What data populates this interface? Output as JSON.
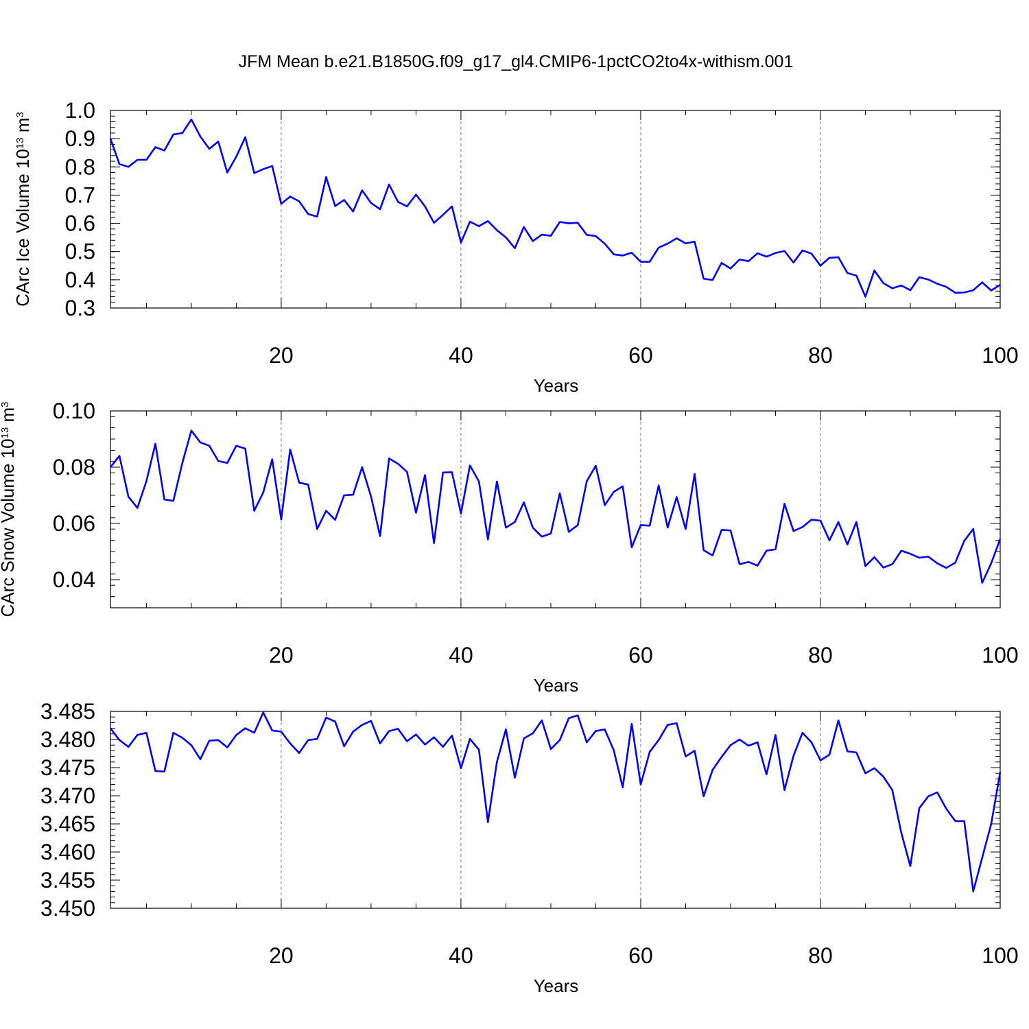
{
  "title": "JFM Mean b.e21.B1850G.f09_g17_gl4.CMIP6-1pctCO2to4x-withism.001",
  "colors": {
    "series": "#0000ff",
    "grid": "#777777",
    "axes": "#000000"
  },
  "chart_data": [
    {
      "type": "line",
      "xlabel": "Years",
      "ylabel": "CArc Ice Volume 10",
      "ylabel_exp": "13",
      "ylabel_unit": " m",
      "ylabel_unit_exp": "3",
      "xlim": [
        1,
        100
      ],
      "ylim": [
        0.3,
        1.0
      ],
      "xticks": [
        "20",
        "40",
        "60",
        "80",
        "100"
      ],
      "yticks": [
        "0.3",
        "0.4",
        "0.5",
        "0.6",
        "0.7",
        "0.8",
        "0.9",
        "1.0"
      ],
      "grid": "x-dashed",
      "series": [
        {
          "color": "#0000ff",
          "values": [
            0.9,
            0.81,
            0.8,
            0.825,
            0.825,
            0.87,
            0.858,
            0.915,
            0.92,
            0.968,
            0.908,
            0.864,
            0.89,
            0.78,
            0.836,
            0.905,
            0.778,
            0.792,
            0.803,
            0.669,
            0.695,
            0.678,
            0.633,
            0.624,
            0.764,
            0.661,
            0.683,
            0.642,
            0.717,
            0.672,
            0.65,
            0.738,
            0.676,
            0.66,
            0.702,
            0.66,
            0.602,
            0.63,
            0.66,
            0.532,
            0.606,
            0.59,
            0.608,
            0.576,
            0.55,
            0.512,
            0.587,
            0.537,
            0.56,
            0.556,
            0.605,
            0.6,
            0.602,
            0.559,
            0.555,
            0.528,
            0.49,
            0.486,
            0.496,
            0.464,
            0.464,
            0.514,
            0.528,
            0.547,
            0.529,
            0.535,
            0.404,
            0.399,
            0.46,
            0.44,
            0.472,
            0.466,
            0.494,
            0.482,
            0.495,
            0.502,
            0.461,
            0.504,
            0.493,
            0.45,
            0.478,
            0.48,
            0.424,
            0.415,
            0.34,
            0.433,
            0.388,
            0.37,
            0.38,
            0.363,
            0.409,
            0.401,
            0.386,
            0.375,
            0.354,
            0.355,
            0.363,
            0.391,
            0.362,
            0.382
          ]
        }
      ]
    },
    {
      "type": "line",
      "xlabel": "Years",
      "ylabel": "CArc Snow Volume 10",
      "ylabel_exp": "13",
      "ylabel_unit": " m",
      "ylabel_unit_exp": "3",
      "xlim": [
        1,
        100
      ],
      "ylim": [
        0.03,
        0.1
      ],
      "xticks": [
        "20",
        "40",
        "60",
        "80",
        "100"
      ],
      "yticks": [
        "0.04",
        "0.06",
        "0.08",
        "0.10"
      ],
      "grid": "x-dashed",
      "series": [
        {
          "color": "#0000ff",
          "values": [
            0.08,
            0.084,
            0.0695,
            0.0655,
            0.075,
            0.0883,
            0.0685,
            0.068,
            0.0815,
            0.093,
            0.0888,
            0.0876,
            0.0822,
            0.0815,
            0.0876,
            0.0866,
            0.0645,
            0.071,
            0.0828,
            0.0614,
            0.0863,
            0.0745,
            0.0738,
            0.058,
            0.0645,
            0.0613,
            0.07,
            0.0702,
            0.08,
            0.0695,
            0.0555,
            0.0831,
            0.0812,
            0.0783,
            0.0638,
            0.0772,
            0.053,
            0.0781,
            0.0782,
            0.0635,
            0.0806,
            0.0749,
            0.0543,
            0.0749,
            0.0585,
            0.0605,
            0.0675,
            0.0585,
            0.0553,
            0.0564,
            0.0707,
            0.057,
            0.0594,
            0.075,
            0.0805,
            0.0665,
            0.0712,
            0.0732,
            0.0515,
            0.0594,
            0.0592,
            0.0735,
            0.0585,
            0.0694,
            0.058,
            0.0776,
            0.0505,
            0.0486,
            0.0577,
            0.0575,
            0.0455,
            0.0463,
            0.045,
            0.0503,
            0.0508,
            0.067,
            0.0573,
            0.0587,
            0.0613,
            0.061,
            0.054,
            0.0605,
            0.0525,
            0.0605,
            0.0448,
            0.048,
            0.0443,
            0.0455,
            0.0503,
            0.0492,
            0.0478,
            0.0482,
            0.0458,
            0.0442,
            0.046,
            0.0538,
            0.058,
            0.0389,
            0.0458,
            0.0545
          ]
        }
      ]
    },
    {
      "type": "line",
      "xlabel": "Years",
      "xlim": [
        1,
        100
      ],
      "ylim": [
        3.45,
        3.485
      ],
      "xticks": [
        "20",
        "40",
        "60",
        "80",
        "100"
      ],
      "yticks": [
        "3.450",
        "3.455",
        "3.460",
        "3.465",
        "3.470",
        "3.475",
        "3.480",
        "3.485"
      ],
      "grid": "x-dashed",
      "series": [
        {
          "color": "#0000ff",
          "values": [
            3.482,
            3.4799,
            3.4787,
            3.4808,
            3.4812,
            3.4744,
            3.4743,
            3.4812,
            3.4803,
            3.479,
            3.4765,
            3.4798,
            3.4799,
            3.4786,
            3.4808,
            3.482,
            3.4812,
            3.4848,
            3.4816,
            3.4814,
            3.4793,
            3.4776,
            3.4799,
            3.4801,
            3.4839,
            3.4832,
            3.4788,
            3.4814,
            3.4826,
            3.4833,
            3.4793,
            3.4815,
            3.4819,
            3.4797,
            3.4809,
            3.4791,
            3.4804,
            3.4787,
            3.4807,
            3.4749,
            3.4801,
            3.4782,
            3.4653,
            3.476,
            3.4818,
            3.4732,
            3.4802,
            3.4811,
            3.4834,
            3.4783,
            3.4799,
            3.4838,
            3.4843,
            3.4795,
            3.4815,
            3.4818,
            3.4781,
            3.4715,
            3.4828,
            3.472,
            3.4778,
            3.4799,
            3.4826,
            3.4829,
            3.477,
            3.478,
            3.4699,
            3.4746,
            3.4769,
            3.479,
            3.48,
            3.4789,
            3.4795,
            3.4738,
            3.4808,
            3.471,
            3.4771,
            3.4812,
            3.4795,
            3.4763,
            3.4773,
            3.4834,
            3.4779,
            3.4777,
            3.474,
            3.4749,
            3.4734,
            3.471,
            3.4634,
            3.4575,
            3.4678,
            3.4699,
            3.4706,
            3.4677,
            3.4655,
            3.4655,
            3.453,
            3.459,
            3.465,
            3.4742
          ]
        }
      ]
    }
  ]
}
